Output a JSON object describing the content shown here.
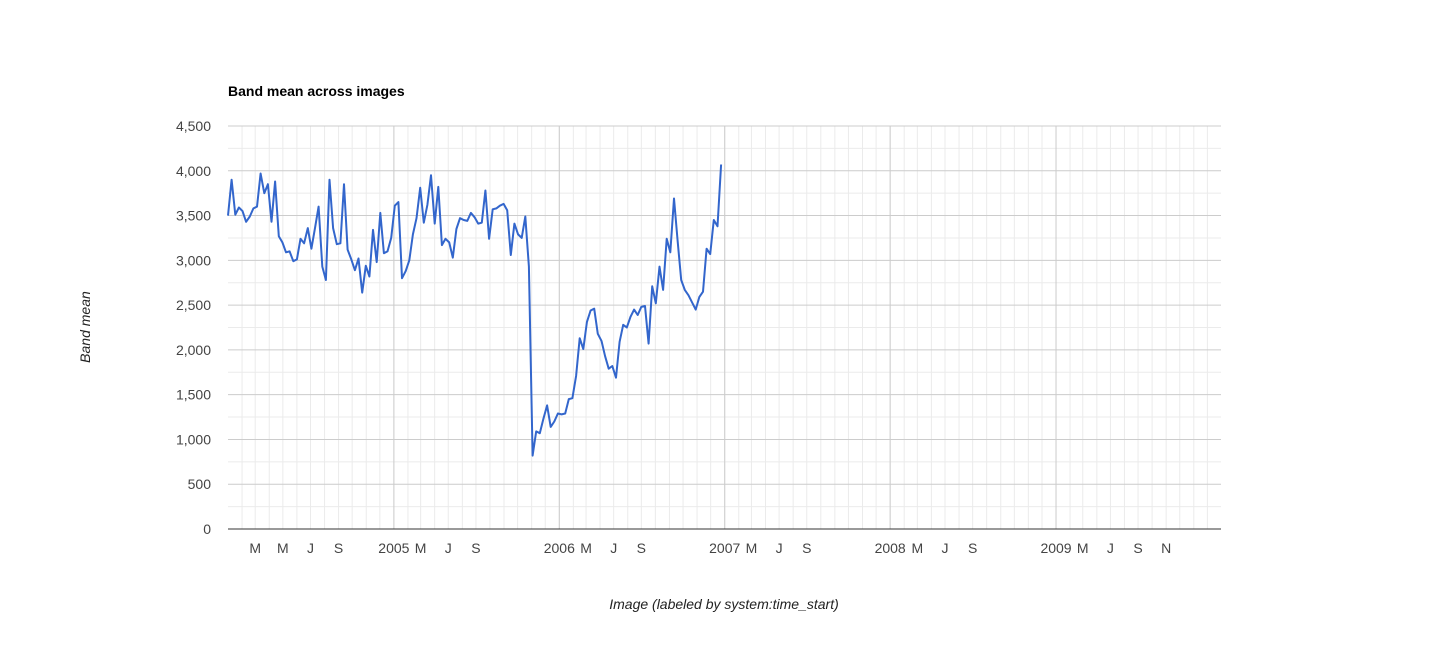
{
  "chart_data": {
    "type": "line",
    "title": "Band mean across images",
    "xlabel": "Image (labeled by system:time_start)",
    "ylabel": "Band mean",
    "ylim": [
      0,
      4500
    ],
    "yticks": [
      "0",
      "500",
      "1,000",
      "1,500",
      "2,000",
      "2,500",
      "3,000",
      "3,500",
      "4,000",
      "4,500"
    ],
    "xlim": [
      "2004-01-01",
      "2009-12-31"
    ],
    "xticks": [
      {
        "label": "M",
        "date": "2004-03-01"
      },
      {
        "label": "M",
        "date": "2004-05-01"
      },
      {
        "label": "J",
        "date": "2004-07-01"
      },
      {
        "label": "S",
        "date": "2004-09-01"
      },
      {
        "label": "2005",
        "date": "2005-01-01"
      },
      {
        "label": "M",
        "date": "2005-03-01"
      },
      {
        "label": "J",
        "date": "2005-05-01"
      },
      {
        "label": "S",
        "date": "2005-07-01"
      },
      {
        "label": "2006",
        "date": "2006-01-01"
      },
      {
        "label": "M",
        "date": "2006-03-01"
      },
      {
        "label": "J",
        "date": "2006-05-01"
      },
      {
        "label": "S",
        "date": "2006-07-01"
      },
      {
        "label": "2007",
        "date": "2007-01-01"
      },
      {
        "label": "M",
        "date": "2007-03-01"
      },
      {
        "label": "J",
        "date": "2007-05-01"
      },
      {
        "label": "S",
        "date": "2007-07-01"
      },
      {
        "label": "2008",
        "date": "2008-01-01"
      },
      {
        "label": "M",
        "date": "2008-03-01"
      },
      {
        "label": "J",
        "date": "2008-05-01"
      },
      {
        "label": "S",
        "date": "2008-07-01"
      },
      {
        "label": "2009",
        "date": "2009-01-01"
      },
      {
        "label": "M",
        "date": "2009-03-01"
      },
      {
        "label": "J",
        "date": "2009-05-01"
      },
      {
        "label": "S",
        "date": "2009-07-01"
      },
      {
        "label": "N",
        "date": "2009-09-01"
      }
    ],
    "grid": true,
    "series": [
      {
        "color": "#3366cc",
        "points": [
          [
            "2004-01-01",
            3500
          ],
          [
            "2004-01-09",
            3900
          ],
          [
            "2004-01-17",
            3510
          ],
          [
            "2004-01-25",
            3590
          ],
          [
            "2004-02-02",
            3550
          ],
          [
            "2004-02-10",
            3430
          ],
          [
            "2004-02-18",
            3490
          ],
          [
            "2004-02-26",
            3580
          ],
          [
            "2004-03-05",
            3600
          ],
          [
            "2004-03-13",
            3970
          ],
          [
            "2004-03-21",
            3750
          ],
          [
            "2004-03-29",
            3850
          ],
          [
            "2004-04-06",
            3430
          ],
          [
            "2004-04-14",
            3880
          ],
          [
            "2004-04-22",
            3270
          ],
          [
            "2004-04-30",
            3200
          ],
          [
            "2004-05-08",
            3090
          ],
          [
            "2004-05-16",
            3100
          ],
          [
            "2004-05-24",
            2990
          ],
          [
            "2004-06-01",
            3010
          ],
          [
            "2004-06-09",
            3240
          ],
          [
            "2004-06-17",
            3190
          ],
          [
            "2004-06-25",
            3360
          ],
          [
            "2004-07-03",
            3130
          ],
          [
            "2004-07-11",
            3360
          ],
          [
            "2004-07-19",
            3600
          ],
          [
            "2004-07-27",
            2930
          ],
          [
            "2004-08-04",
            2780
          ],
          [
            "2004-08-12",
            3900
          ],
          [
            "2004-08-20",
            3360
          ],
          [
            "2004-08-28",
            3180
          ],
          [
            "2004-09-05",
            3190
          ],
          [
            "2004-09-13",
            3850
          ],
          [
            "2004-09-21",
            3120
          ],
          [
            "2004-09-29",
            3010
          ],
          [
            "2004-10-07",
            2890
          ],
          [
            "2004-10-15",
            3020
          ],
          [
            "2004-10-23",
            2640
          ],
          [
            "2004-10-31",
            2940
          ],
          [
            "2004-11-08",
            2820
          ],
          [
            "2004-11-16",
            3340
          ],
          [
            "2004-11-24",
            2980
          ],
          [
            "2004-12-02",
            3530
          ],
          [
            "2004-12-10",
            3080
          ],
          [
            "2004-12-18",
            3100
          ],
          [
            "2004-12-26",
            3250
          ],
          [
            "2005-01-03",
            3610
          ],
          [
            "2005-01-11",
            3650
          ],
          [
            "2005-01-19",
            2800
          ],
          [
            "2005-01-27",
            2880
          ],
          [
            "2005-02-04",
            3000
          ],
          [
            "2005-02-12",
            3290
          ],
          [
            "2005-02-20",
            3470
          ],
          [
            "2005-02-28",
            3810
          ],
          [
            "2005-03-08",
            3420
          ],
          [
            "2005-03-16",
            3620
          ],
          [
            "2005-03-24",
            3950
          ],
          [
            "2005-04-01",
            3410
          ],
          [
            "2005-04-09",
            3820
          ],
          [
            "2005-04-17",
            3170
          ],
          [
            "2005-04-25",
            3240
          ],
          [
            "2005-05-03",
            3200
          ],
          [
            "2005-05-11",
            3030
          ],
          [
            "2005-05-19",
            3350
          ],
          [
            "2005-05-27",
            3470
          ],
          [
            "2005-06-04",
            3450
          ],
          [
            "2005-06-12",
            3440
          ],
          [
            "2005-06-20",
            3530
          ],
          [
            "2005-06-28",
            3480
          ],
          [
            "2005-07-06",
            3410
          ],
          [
            "2005-07-14",
            3420
          ],
          [
            "2005-07-22",
            3780
          ],
          [
            "2005-07-30",
            3240
          ],
          [
            "2005-08-07",
            3570
          ],
          [
            "2005-08-15",
            3580
          ],
          [
            "2005-08-23",
            3610
          ],
          [
            "2005-08-31",
            3630
          ],
          [
            "2005-09-08",
            3560
          ],
          [
            "2005-09-16",
            3060
          ],
          [
            "2005-09-24",
            3410
          ],
          [
            "2005-10-02",
            3290
          ],
          [
            "2005-10-10",
            3250
          ],
          [
            "2005-10-18",
            3490
          ],
          [
            "2005-10-26",
            2930
          ],
          [
            "2005-11-03",
            820
          ],
          [
            "2005-11-11",
            1090
          ],
          [
            "2005-11-19",
            1070
          ],
          [
            "2005-11-27",
            1230
          ],
          [
            "2005-12-05",
            1380
          ],
          [
            "2005-12-13",
            1140
          ],
          [
            "2005-12-21",
            1200
          ],
          [
            "2005-12-29",
            1290
          ],
          [
            "2006-01-06",
            1280
          ],
          [
            "2006-01-14",
            1290
          ],
          [
            "2006-01-22",
            1450
          ],
          [
            "2006-01-30",
            1460
          ],
          [
            "2006-02-07",
            1710
          ],
          [
            "2006-02-15",
            2130
          ],
          [
            "2006-02-23",
            2010
          ],
          [
            "2006-03-03",
            2310
          ],
          [
            "2006-03-11",
            2440
          ],
          [
            "2006-03-19",
            2460
          ],
          [
            "2006-03-27",
            2180
          ],
          [
            "2006-04-04",
            2100
          ],
          [
            "2006-04-12",
            1930
          ],
          [
            "2006-04-20",
            1790
          ],
          [
            "2006-04-28",
            1820
          ],
          [
            "2006-05-06",
            1690
          ],
          [
            "2006-05-14",
            2090
          ],
          [
            "2006-05-22",
            2280
          ],
          [
            "2006-05-30",
            2250
          ],
          [
            "2006-06-07",
            2370
          ],
          [
            "2006-06-15",
            2450
          ],
          [
            "2006-06-23",
            2390
          ],
          [
            "2006-07-01",
            2480
          ],
          [
            "2006-07-09",
            2490
          ],
          [
            "2006-07-17",
            2070
          ],
          [
            "2006-07-25",
            2710
          ],
          [
            "2006-08-02",
            2520
          ],
          [
            "2006-08-10",
            2930
          ],
          [
            "2006-08-18",
            2670
          ],
          [
            "2006-08-26",
            3240
          ],
          [
            "2006-09-03",
            3090
          ],
          [
            "2006-09-11",
            3690
          ],
          [
            "2006-09-19",
            3220
          ],
          [
            "2006-09-27",
            2780
          ],
          [
            "2006-10-05",
            2670
          ],
          [
            "2006-10-13",
            2610
          ],
          [
            "2006-10-21",
            2530
          ],
          [
            "2006-10-29",
            2450
          ],
          [
            "2006-11-06",
            2590
          ],
          [
            "2006-11-14",
            2650
          ],
          [
            "2006-11-22",
            3130
          ],
          [
            "2006-11-30",
            3070
          ],
          [
            "2006-12-08",
            3450
          ],
          [
            "2006-12-16",
            3380
          ],
          [
            "2006-12-24",
            4070
          ]
        ]
      }
    ]
  }
}
